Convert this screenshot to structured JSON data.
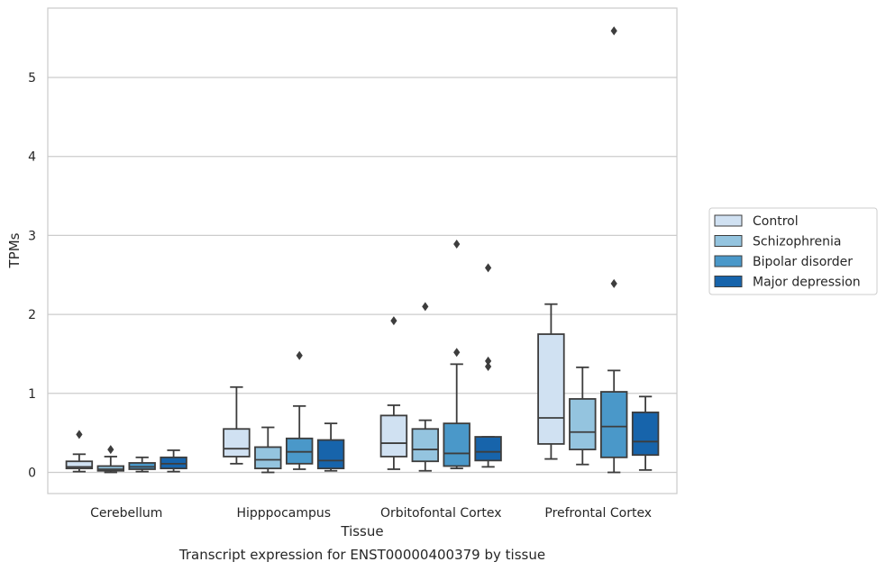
{
  "chart_data": {
    "type": "boxplot",
    "title": "",
    "caption": "Transcript expression for ENST00000400379 by tissue",
    "xlabel": "Tissue",
    "ylabel": "TPMs",
    "ylim": [
      -0.27,
      5.9
    ],
    "yticks": [
      0,
      1,
      2,
      3,
      4,
      5
    ],
    "grid": "horizontal",
    "legend_position": "right",
    "categories": [
      "Cerebellum",
      "Hipppocampus",
      "Orbitofontal Cortex",
      "Prefrontal Cortex"
    ],
    "series": [
      {
        "name": "Control",
        "color": "#d0e1f2",
        "boxes": [
          {
            "whislo": 0.01,
            "q1": 0.05,
            "med": 0.07,
            "q3": 0.14,
            "whishi": 0.23,
            "fliers": [
              0.48
            ]
          },
          {
            "whislo": 0.11,
            "q1": 0.2,
            "med": 0.3,
            "q3": 0.55,
            "whishi": 1.08,
            "fliers": []
          },
          {
            "whislo": 0.04,
            "q1": 0.2,
            "med": 0.37,
            "q3": 0.72,
            "whishi": 0.85,
            "fliers": [
              1.92
            ]
          },
          {
            "whislo": 0.17,
            "q1": 0.36,
            "med": 0.69,
            "q3": 1.75,
            "whishi": 2.13,
            "fliers": []
          }
        ]
      },
      {
        "name": "Schizophrenia",
        "color": "#94c4df",
        "boxes": [
          {
            "whislo": 0.0,
            "q1": 0.02,
            "med": 0.04,
            "q3": 0.08,
            "whishi": 0.2,
            "fliers": [
              0.29
            ]
          },
          {
            "whislo": 0.0,
            "q1": 0.05,
            "med": 0.16,
            "q3": 0.32,
            "whishi": 0.57,
            "fliers": []
          },
          {
            "whislo": 0.02,
            "q1": 0.14,
            "med": 0.29,
            "q3": 0.55,
            "whishi": 0.66,
            "fliers": [
              2.1
            ]
          },
          {
            "whislo": 0.1,
            "q1": 0.29,
            "med": 0.51,
            "q3": 0.93,
            "whishi": 1.33,
            "fliers": []
          }
        ]
      },
      {
        "name": "Bipolar disorder",
        "color": "#4a98c9",
        "boxes": [
          {
            "whislo": 0.01,
            "q1": 0.04,
            "med": 0.07,
            "q3": 0.12,
            "whishi": 0.19,
            "fliers": []
          },
          {
            "whislo": 0.04,
            "q1": 0.11,
            "med": 0.26,
            "q3": 0.43,
            "whishi": 0.84,
            "fliers": [
              1.48
            ]
          },
          {
            "whislo": 0.05,
            "q1": 0.08,
            "med": 0.24,
            "q3": 0.62,
            "whishi": 1.37,
            "fliers": [
              2.89,
              1.52
            ]
          },
          {
            "whislo": 0.0,
            "q1": 0.19,
            "med": 0.58,
            "q3": 1.02,
            "whishi": 1.29,
            "fliers": [
              5.59,
              2.39
            ]
          }
        ]
      },
      {
        "name": "Major depression",
        "color": "#1764ab",
        "boxes": [
          {
            "whislo": 0.01,
            "q1": 0.05,
            "med": 0.11,
            "q3": 0.19,
            "whishi": 0.28,
            "fliers": []
          },
          {
            "whislo": 0.02,
            "q1": 0.05,
            "med": 0.15,
            "q3": 0.41,
            "whishi": 0.62,
            "fliers": []
          },
          {
            "whislo": 0.07,
            "q1": 0.15,
            "med": 0.26,
            "q3": 0.45,
            "whishi": 0.45,
            "fliers": [
              2.59,
              1.41,
              1.34
            ]
          },
          {
            "whislo": 0.03,
            "q1": 0.22,
            "med": 0.39,
            "q3": 0.76,
            "whishi": 0.96,
            "fliers": []
          }
        ]
      }
    ]
  }
}
